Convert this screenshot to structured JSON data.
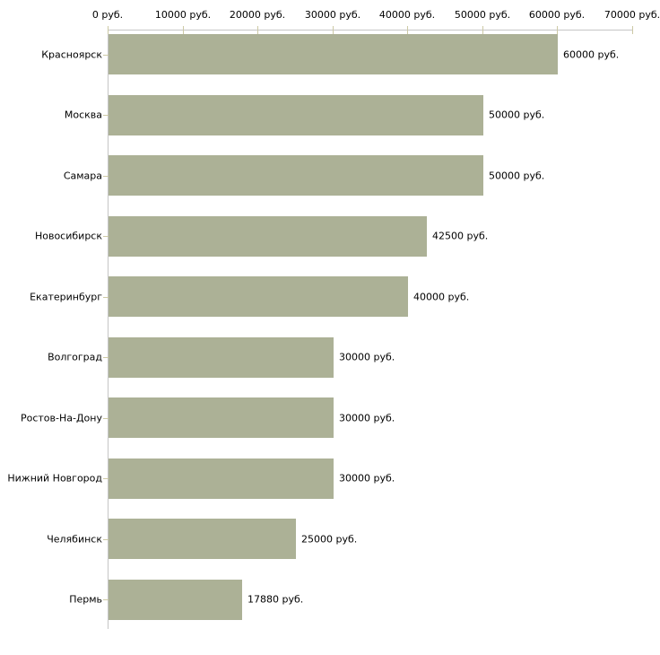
{
  "chart_data": {
    "type": "bar",
    "orientation": "horizontal",
    "title": "",
    "xlabel": "",
    "ylabel": "",
    "grid": false,
    "legend": false,
    "axis_position": "top",
    "categories": [
      "Красноярск",
      "Москва",
      "Самара",
      "Новосибирск",
      "Екатеринбург",
      "Волгоград",
      "Ростов-На-Дону",
      "Нижний Новгород",
      "Челябинск",
      "Пермь"
    ],
    "values": [
      60000,
      50000,
      50000,
      42500,
      40000,
      30000,
      30000,
      30000,
      25000,
      17880
    ],
    "value_labels": [
      "60000 руб.",
      "50000 руб.",
      "50000 руб.",
      "42500 руб.",
      "40000 руб.",
      "30000 руб.",
      "30000 руб.",
      "30000 руб.",
      "25000 руб.",
      "17880 руб."
    ],
    "x_axis": {
      "min": 0,
      "max": 70000,
      "tick_values": [
        0,
        10000,
        20000,
        30000,
        40000,
        50000,
        60000,
        70000
      ],
      "tick_labels": [
        "0 руб.",
        "10000 руб.",
        "20000 руб.",
        "30000 руб.",
        "40000 руб.",
        "50000 руб.",
        "60000 руб.",
        "70000 руб."
      ]
    },
    "colors": {
      "bar": "#acb196",
      "axis_line": "#c6c6c6",
      "tick_mark": "#cdc9a5",
      "text": "#000000",
      "background": "#ffffff"
    }
  }
}
